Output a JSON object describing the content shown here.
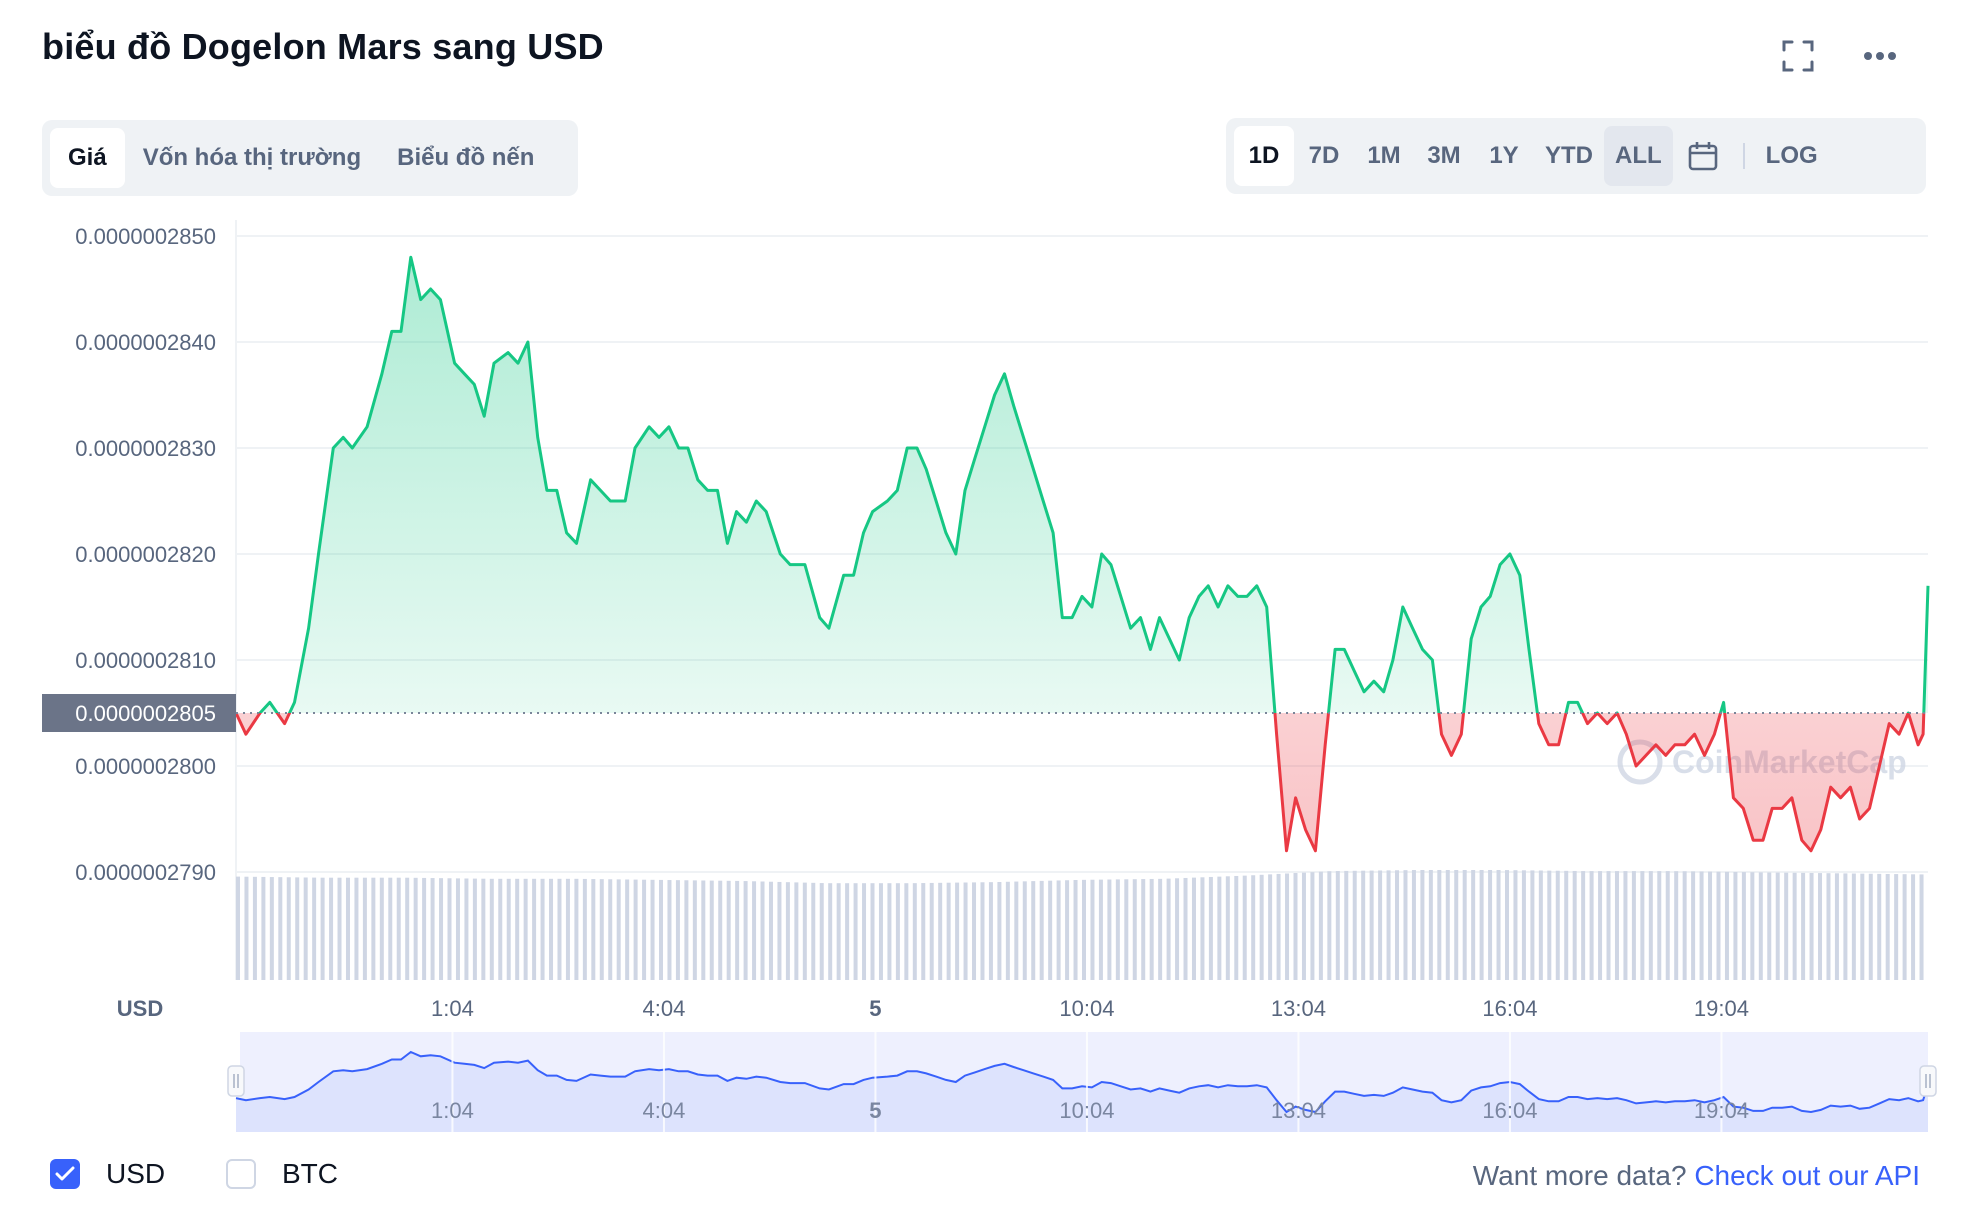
{
  "header": {
    "title": "biểu đồ Dogelon Mars sang USD"
  },
  "tabs": [
    {
      "label": "Giá",
      "active": true
    },
    {
      "label": "Vốn hóa thị trường",
      "active": false
    },
    {
      "label": "Biểu đồ nến",
      "active": false
    }
  ],
  "ranges": [
    {
      "label": "1D",
      "active": true
    },
    {
      "label": "7D",
      "active": false
    },
    {
      "label": "1M",
      "active": false
    },
    {
      "label": "3M",
      "active": false
    },
    {
      "label": "1Y",
      "active": false
    },
    {
      "label": "YTD",
      "active": false
    },
    {
      "label": "ALL",
      "active": false
    }
  ],
  "log_label": "LOG",
  "icons": {
    "fullscreen": "fullscreen-icon",
    "more": "more-icon",
    "calendar": "calendar-icon",
    "check": "check-icon"
  },
  "colors": {
    "up": "#16c784",
    "down": "#ea3943",
    "accent": "#3861fb",
    "volume": "#cfd6e4"
  },
  "footer": {
    "currencies": [
      {
        "label": "USD",
        "checked": true
      },
      {
        "label": "BTC",
        "checked": false
      }
    ],
    "api_text": "Want more data?",
    "api_link": "Check out our API"
  },
  "chart_data": {
    "type": "area",
    "currency_label": "USD",
    "watermark": "CoinMarketCap",
    "baseline": 2.805e-07,
    "baseline_label": "0.0000002805",
    "ylim": [
      2.78e-07,
      2.852e-07
    ],
    "yticks": [
      {
        "value": 2.85e-07,
        "label": "0.0000002850"
      },
      {
        "value": 2.84e-07,
        "label": "0.0000002840"
      },
      {
        "value": 2.83e-07,
        "label": "0.0000002830"
      },
      {
        "value": 2.82e-07,
        "label": "0.0000002820"
      },
      {
        "value": 2.81e-07,
        "label": "0.0000002810"
      },
      {
        "value": 2.8e-07,
        "label": "0.0000002800"
      },
      {
        "value": 2.79e-07,
        "label": "0.0000002790"
      }
    ],
    "xlim": [
      0,
      24
    ],
    "xticks": [
      {
        "t": 3.07,
        "label": "1:04",
        "bold": false
      },
      {
        "t": 6.07,
        "label": "4:04",
        "bold": false
      },
      {
        "t": 9.07,
        "label": "5",
        "bold": true
      },
      {
        "t": 12.07,
        "label": "10:04",
        "bold": false
      },
      {
        "t": 15.07,
        "label": "13:04",
        "bold": false
      },
      {
        "t": 18.07,
        "label": "16:04",
        "bold": false
      },
      {
        "t": 21.07,
        "label": "19:04",
        "bold": false
      }
    ],
    "price_points": [
      [
        0.0,
        2.805e-07
      ],
      [
        0.14,
        2.803e-07
      ],
      [
        0.34,
        2.805e-07
      ],
      [
        0.48,
        2.806e-07
      ],
      [
        0.69,
        2.804e-07
      ],
      [
        0.83,
        2.806e-07
      ],
      [
        1.03,
        2.813e-07
      ],
      [
        1.17,
        2.82e-07
      ],
      [
        1.38,
        2.83e-07
      ],
      [
        1.52,
        2.831e-07
      ],
      [
        1.65,
        2.83e-07
      ],
      [
        1.86,
        2.832e-07
      ],
      [
        2.07,
        2.837e-07
      ],
      [
        2.21,
        2.841e-07
      ],
      [
        2.34,
        2.841e-07
      ],
      [
        2.48,
        2.848e-07
      ],
      [
        2.62,
        2.844e-07
      ],
      [
        2.76,
        2.845e-07
      ],
      [
        2.9,
        2.844e-07
      ],
      [
        3.1,
        2.838e-07
      ],
      [
        3.24,
        2.837e-07
      ],
      [
        3.38,
        2.836e-07
      ],
      [
        3.52,
        2.833e-07
      ],
      [
        3.66,
        2.838e-07
      ],
      [
        3.86,
        2.839e-07
      ],
      [
        4.0,
        2.838e-07
      ],
      [
        4.14,
        2.84e-07
      ],
      [
        4.28,
        2.831e-07
      ],
      [
        4.41,
        2.826e-07
      ],
      [
        4.55,
        2.826e-07
      ],
      [
        4.69,
        2.822e-07
      ],
      [
        4.83,
        2.821e-07
      ],
      [
        5.03,
        2.827e-07
      ],
      [
        5.17,
        2.826e-07
      ],
      [
        5.31,
        2.825e-07
      ],
      [
        5.52,
        2.825e-07
      ],
      [
        5.66,
        2.83e-07
      ],
      [
        5.86,
        2.832e-07
      ],
      [
        6.0,
        2.831e-07
      ],
      [
        6.14,
        2.832e-07
      ],
      [
        6.28,
        2.83e-07
      ],
      [
        6.41,
        2.83e-07
      ],
      [
        6.55,
        2.827e-07
      ],
      [
        6.69,
        2.826e-07
      ],
      [
        6.83,
        2.826e-07
      ],
      [
        6.97,
        2.821e-07
      ],
      [
        7.1,
        2.824e-07
      ],
      [
        7.24,
        2.823e-07
      ],
      [
        7.38,
        2.825e-07
      ],
      [
        7.52,
        2.824e-07
      ],
      [
        7.72,
        2.82e-07
      ],
      [
        7.86,
        2.819e-07
      ],
      [
        8.07,
        2.819e-07
      ],
      [
        8.28,
        2.814e-07
      ],
      [
        8.41,
        2.813e-07
      ],
      [
        8.62,
        2.818e-07
      ],
      [
        8.76,
        2.818e-07
      ],
      [
        8.9,
        2.822e-07
      ],
      [
        9.03,
        2.824e-07
      ],
      [
        9.24,
        2.825e-07
      ],
      [
        9.38,
        2.826e-07
      ],
      [
        9.52,
        2.83e-07
      ],
      [
        9.66,
        2.83e-07
      ],
      [
        9.79,
        2.828e-07
      ],
      [
        9.93,
        2.825e-07
      ],
      [
        10.07,
        2.822e-07
      ],
      [
        10.21,
        2.82e-07
      ],
      [
        10.34,
        2.826e-07
      ],
      [
        10.48,
        2.829e-07
      ],
      [
        10.62,
        2.832e-07
      ],
      [
        10.76,
        2.835e-07
      ],
      [
        10.9,
        2.837e-07
      ],
      [
        11.03,
        2.834e-07
      ],
      [
        11.17,
        2.831e-07
      ],
      [
        11.31,
        2.828e-07
      ],
      [
        11.45,
        2.825e-07
      ],
      [
        11.59,
        2.822e-07
      ],
      [
        11.72,
        2.814e-07
      ],
      [
        11.86,
        2.814e-07
      ],
      [
        12.0,
        2.816e-07
      ],
      [
        12.14,
        2.815e-07
      ],
      [
        12.28,
        2.82e-07
      ],
      [
        12.41,
        2.819e-07
      ],
      [
        12.55,
        2.816e-07
      ],
      [
        12.69,
        2.813e-07
      ],
      [
        12.83,
        2.814e-07
      ],
      [
        12.97,
        2.811e-07
      ],
      [
        13.1,
        2.814e-07
      ],
      [
        13.24,
        2.812e-07
      ],
      [
        13.38,
        2.81e-07
      ],
      [
        13.52,
        2.814e-07
      ],
      [
        13.66,
        2.816e-07
      ],
      [
        13.79,
        2.817e-07
      ],
      [
        13.93,
        2.815e-07
      ],
      [
        14.07,
        2.817e-07
      ],
      [
        14.21,
        2.816e-07
      ],
      [
        14.34,
        2.816e-07
      ],
      [
        14.48,
        2.817e-07
      ],
      [
        14.62,
        2.815e-07
      ],
      [
        14.76,
        2.803e-07
      ],
      [
        14.9,
        2.792e-07
      ],
      [
        15.03,
        2.797e-07
      ],
      [
        15.17,
        2.794e-07
      ],
      [
        15.31,
        2.792e-07
      ],
      [
        15.45,
        2.802e-07
      ],
      [
        15.59,
        2.811e-07
      ],
      [
        15.72,
        2.811e-07
      ],
      [
        15.86,
        2.809e-07
      ],
      [
        16.0,
        2.807e-07
      ],
      [
        16.14,
        2.808e-07
      ],
      [
        16.28,
        2.807e-07
      ],
      [
        16.41,
        2.81e-07
      ],
      [
        16.55,
        2.815e-07
      ],
      [
        16.69,
        2.813e-07
      ],
      [
        16.83,
        2.811e-07
      ],
      [
        16.97,
        2.81e-07
      ],
      [
        17.1,
        2.803e-07
      ],
      [
        17.24,
        2.801e-07
      ],
      [
        17.38,
        2.803e-07
      ],
      [
        17.52,
        2.812e-07
      ],
      [
        17.66,
        2.815e-07
      ],
      [
        17.79,
        2.816e-07
      ],
      [
        17.93,
        2.819e-07
      ],
      [
        18.07,
        2.82e-07
      ],
      [
        18.21,
        2.818e-07
      ],
      [
        18.34,
        2.811e-07
      ],
      [
        18.48,
        2.804e-07
      ],
      [
        18.62,
        2.802e-07
      ],
      [
        18.76,
        2.802e-07
      ],
      [
        18.9,
        2.806e-07
      ],
      [
        19.03,
        2.806e-07
      ],
      [
        19.17,
        2.804e-07
      ],
      [
        19.31,
        2.805e-07
      ],
      [
        19.45,
        2.804e-07
      ],
      [
        19.59,
        2.805e-07
      ],
      [
        19.72,
        2.803e-07
      ],
      [
        19.86,
        2.8e-07
      ],
      [
        20.0,
        2.801e-07
      ],
      [
        20.14,
        2.802e-07
      ],
      [
        20.28,
        2.801e-07
      ],
      [
        20.41,
        2.802e-07
      ],
      [
        20.55,
        2.802e-07
      ],
      [
        20.69,
        2.803e-07
      ],
      [
        20.83,
        2.801e-07
      ],
      [
        20.97,
        2.803e-07
      ],
      [
        21.1,
        2.806e-07
      ],
      [
        21.24,
        2.797e-07
      ],
      [
        21.38,
        2.796e-07
      ],
      [
        21.52,
        2.793e-07
      ],
      [
        21.66,
        2.793e-07
      ],
      [
        21.79,
        2.796e-07
      ],
      [
        21.93,
        2.796e-07
      ],
      [
        22.07,
        2.797e-07
      ],
      [
        22.21,
        2.793e-07
      ],
      [
        22.34,
        2.792e-07
      ],
      [
        22.48,
        2.794e-07
      ],
      [
        22.62,
        2.798e-07
      ],
      [
        22.76,
        2.797e-07
      ],
      [
        22.9,
        2.798e-07
      ],
      [
        23.03,
        2.795e-07
      ],
      [
        23.17,
        2.796e-07
      ],
      [
        23.31,
        2.8e-07
      ],
      [
        23.45,
        2.804e-07
      ],
      [
        23.59,
        2.803e-07
      ],
      [
        23.72,
        2.805e-07
      ],
      [
        23.86,
        2.802e-07
      ],
      [
        23.93,
        2.803e-07
      ],
      [
        24.0,
        2.817e-07
      ]
    ],
    "volume_ratios": [
      0.94,
      0.93,
      0.93,
      0.92,
      0.92,
      0.91,
      0.9,
      0.88,
      0.88,
      0.89,
      0.91,
      0.92,
      0.95,
      0.99,
      1.0,
      1.0,
      0.99,
      0.99,
      0.98,
      0.97,
      0.96
    ],
    "navigator_lines": 3
  }
}
